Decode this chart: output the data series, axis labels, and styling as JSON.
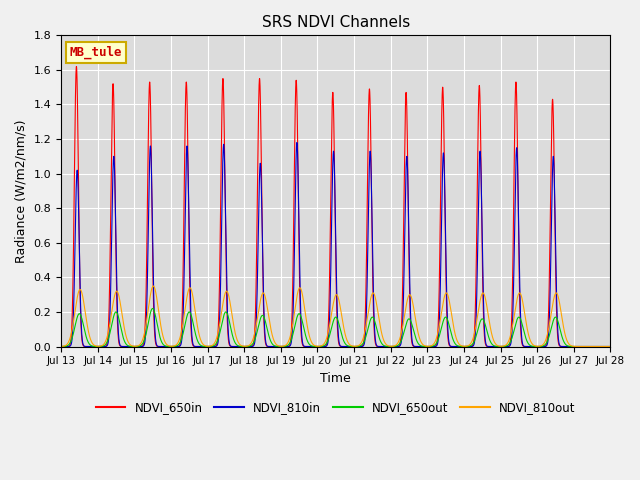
{
  "title": "SRS NDVI Channels",
  "xlabel": "Time",
  "ylabel": "Radiance (W/m2/nm/s)",
  "ylim": [
    0,
    1.8
  ],
  "annotation": "MB_tule",
  "bg_color": "#dcdcdc",
  "lines": {
    "NDVI_650in": {
      "color": "#ff0000",
      "peaks": [
        {
          "day": 13.42,
          "val": 1.62
        },
        {
          "day": 14.42,
          "val": 1.52
        },
        {
          "day": 15.42,
          "val": 1.53
        },
        {
          "day": 16.42,
          "val": 1.53
        },
        {
          "day": 17.42,
          "val": 1.55
        },
        {
          "day": 18.42,
          "val": 1.55
        },
        {
          "day": 19.42,
          "val": 1.54
        },
        {
          "day": 20.42,
          "val": 1.47
        },
        {
          "day": 21.42,
          "val": 1.49
        },
        {
          "day": 22.42,
          "val": 1.47
        },
        {
          "day": 23.42,
          "val": 1.5
        },
        {
          "day": 24.42,
          "val": 1.51
        },
        {
          "day": 25.42,
          "val": 1.53
        },
        {
          "day": 26.42,
          "val": 1.43
        }
      ],
      "sigma": 0.055
    },
    "NDVI_810in": {
      "color": "#0000cc",
      "peaks": [
        {
          "day": 13.44,
          "val": 1.02
        },
        {
          "day": 14.44,
          "val": 1.1
        },
        {
          "day": 15.44,
          "val": 1.16
        },
        {
          "day": 16.44,
          "val": 1.16
        },
        {
          "day": 17.44,
          "val": 1.17
        },
        {
          "day": 18.44,
          "val": 1.06
        },
        {
          "day": 19.44,
          "val": 1.18
        },
        {
          "day": 20.44,
          "val": 1.13
        },
        {
          "day": 21.44,
          "val": 1.13
        },
        {
          "day": 22.44,
          "val": 1.1
        },
        {
          "day": 23.44,
          "val": 1.12
        },
        {
          "day": 24.44,
          "val": 1.13
        },
        {
          "day": 25.44,
          "val": 1.15
        },
        {
          "day": 26.44,
          "val": 1.1
        }
      ],
      "sigma": 0.055
    },
    "NDVI_650out": {
      "color": "#00cc00",
      "peaks": [
        {
          "day": 13.5,
          "val": 0.19
        },
        {
          "day": 14.5,
          "val": 0.2
        },
        {
          "day": 15.5,
          "val": 0.22
        },
        {
          "day": 16.5,
          "val": 0.2
        },
        {
          "day": 17.5,
          "val": 0.2
        },
        {
          "day": 18.5,
          "val": 0.18
        },
        {
          "day": 19.5,
          "val": 0.19
        },
        {
          "day": 20.5,
          "val": 0.17
        },
        {
          "day": 21.5,
          "val": 0.17
        },
        {
          "day": 22.5,
          "val": 0.16
        },
        {
          "day": 23.5,
          "val": 0.17
        },
        {
          "day": 24.5,
          "val": 0.16
        },
        {
          "day": 25.5,
          "val": 0.17
        },
        {
          "day": 26.5,
          "val": 0.17
        }
      ],
      "sigma": 0.12
    },
    "NDVI_810out": {
      "color": "#ffa500",
      "peaks": [
        {
          "day": 13.52,
          "val": 0.33
        },
        {
          "day": 14.52,
          "val": 0.32
        },
        {
          "day": 15.52,
          "val": 0.35
        },
        {
          "day": 16.52,
          "val": 0.34
        },
        {
          "day": 17.52,
          "val": 0.32
        },
        {
          "day": 18.52,
          "val": 0.31
        },
        {
          "day": 19.52,
          "val": 0.34
        },
        {
          "day": 20.52,
          "val": 0.3
        },
        {
          "day": 21.52,
          "val": 0.31
        },
        {
          "day": 22.52,
          "val": 0.3
        },
        {
          "day": 23.52,
          "val": 0.31
        },
        {
          "day": 24.52,
          "val": 0.31
        },
        {
          "day": 25.52,
          "val": 0.31
        },
        {
          "day": 26.52,
          "val": 0.31
        }
      ],
      "sigma": 0.14
    }
  },
  "legend_entries": [
    "NDVI_650in",
    "NDVI_810in",
    "NDVI_650out",
    "NDVI_810out"
  ],
  "legend_colors": [
    "#ff0000",
    "#0000cc",
    "#00cc00",
    "#ffa500"
  ],
  "tick_days": [
    13,
    14,
    15,
    16,
    17,
    18,
    19,
    20,
    21,
    22,
    23,
    24,
    25,
    26,
    27,
    28
  ]
}
